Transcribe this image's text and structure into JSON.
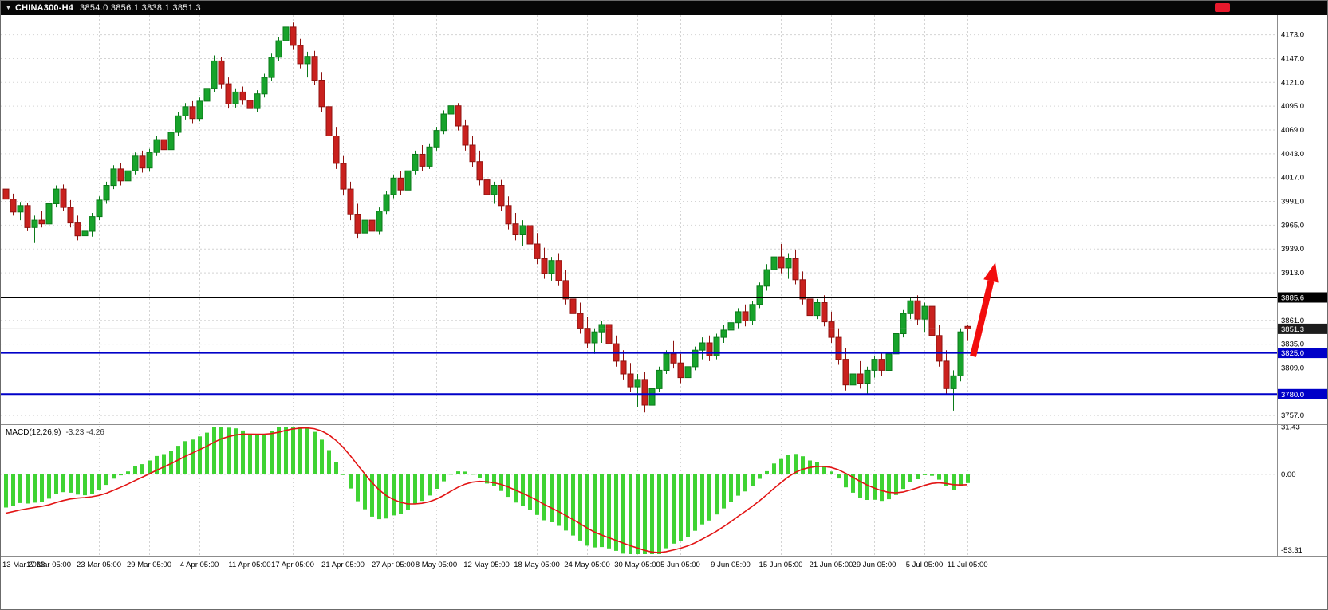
{
  "titlebar": {
    "dropdown_icon": "▼",
    "symbol_period": "CHINA300-H4",
    "ohlc": "3854.0 3856.1 3838.1 3851.3"
  },
  "chart_data": [
    {
      "type": "candlestick",
      "title": "CHINA300-H4",
      "price_axis": {
        "visible_min": 3748,
        "visible_max": 4194,
        "tick_values": [
          4173,
          4147,
          4121,
          4095,
          4069,
          4043,
          4017,
          3991,
          3965,
          3939,
          3913,
          3861,
          3835,
          3809,
          3757
        ],
        "tick_labels": [
          "4173.0",
          "4147.0",
          "4121.0",
          "4095.0",
          "4069.0",
          "4043.0",
          "4017.0",
          "3991.0",
          "3965.0",
          "3939.0",
          "3913.0",
          "3861.0",
          "3835.0",
          "3809.0",
          "3757.0"
        ]
      },
      "hlines": [
        {
          "value": 3885.6,
          "label": "3885.6",
          "line_color": "#000000",
          "label_bg": "#000000",
          "width": 2,
          "role": "resistance-line"
        },
        {
          "value": 3851.3,
          "label": "3851.3",
          "line_color": "#9a9a9a",
          "label_bg": "#1c1c1c",
          "width": 1,
          "role": "current-price"
        },
        {
          "value": 3825.0,
          "label": "3825.0",
          "line_color": "#0000c8",
          "label_bg": "#0000c8",
          "width": 2,
          "role": "support-line"
        },
        {
          "value": 3780.0,
          "label": "3780.0",
          "line_color": "#0000c8",
          "label_bg": "#0000c8",
          "width": 2,
          "role": "support-line"
        }
      ],
      "time_axis": [
        {
          "i": 0,
          "label": "13 Mar 2023"
        },
        {
          "i": 6,
          "label": "17 Mar 05:00"
        },
        {
          "i": 13,
          "label": "23 Mar 05:00"
        },
        {
          "i": 20,
          "label": "29 Mar 05:00"
        },
        {
          "i": 27,
          "label": "4 Apr 05:00"
        },
        {
          "i": 34,
          "label": "11 Apr 05:00"
        },
        {
          "i": 40,
          "label": "17 Apr 05:00"
        },
        {
          "i": 47,
          "label": "21 Apr 05:00"
        },
        {
          "i": 54,
          "label": "27 Apr 05:00"
        },
        {
          "i": 60,
          "label": "8 May 05:00"
        },
        {
          "i": 67,
          "label": "12 May 05:00"
        },
        {
          "i": 74,
          "label": "18 May 05:00"
        },
        {
          "i": 81,
          "label": "24 May 05:00"
        },
        {
          "i": 88,
          "label": "30 May 05:00"
        },
        {
          "i": 94,
          "label": "5 Jun 05:00"
        },
        {
          "i": 101,
          "label": "9 Jun 05:00"
        },
        {
          "i": 108,
          "label": "15 Jun 05:00"
        },
        {
          "i": 115,
          "label": "21 Jun 05:00"
        },
        {
          "i": 121,
          "label": "29 Jun 05:00"
        },
        {
          "i": 128,
          "label": "5 Jul 05:00"
        },
        {
          "i": 134,
          "label": "11 Jul 05:00"
        }
      ],
      "candles": [
        [
          4004,
          4008,
          3988,
          3993
        ],
        [
          3993,
          3999,
          3975,
          3979
        ],
        [
          3979,
          3990,
          3970,
          3986
        ],
        [
          3986,
          3989,
          3958,
          3962
        ],
        [
          3962,
          3975,
          3945,
          3970
        ],
        [
          3970,
          3980,
          3962,
          3966
        ],
        [
          3966,
          3992,
          3960,
          3988
        ],
        [
          3988,
          4008,
          3984,
          4004
        ],
        [
          4004,
          4009,
          3980,
          3984
        ],
        [
          3984,
          3992,
          3962,
          3967
        ],
        [
          3967,
          3975,
          3948,
          3953
        ],
        [
          3953,
          3962,
          3940,
          3958
        ],
        [
          3958,
          3978,
          3952,
          3974
        ],
        [
          3974,
          3996,
          3970,
          3992
        ],
        [
          3992,
          4012,
          3988,
          4008
        ],
        [
          4008,
          4030,
          4004,
          4026
        ],
        [
          4026,
          4032,
          4008,
          4013
        ],
        [
          4013,
          4028,
          4006,
          4024
        ],
        [
          4024,
          4044,
          4020,
          4040
        ],
        [
          4040,
          4046,
          4022,
          4027
        ],
        [
          4027,
          4048,
          4023,
          4044
        ],
        [
          4044,
          4062,
          4040,
          4058
        ],
        [
          4058,
          4064,
          4042,
          4047
        ],
        [
          4047,
          4070,
          4044,
          4066
        ],
        [
          4066,
          4088,
          4062,
          4084
        ],
        [
          4084,
          4098,
          4080,
          4094
        ],
        [
          4094,
          4100,
          4076,
          4081
        ],
        [
          4081,
          4104,
          4078,
          4100
        ],
        [
          4100,
          4118,
          4096,
          4114
        ],
        [
          4114,
          4150,
          4110,
          4144
        ],
        [
          4144,
          4148,
          4114,
          4119
        ],
        [
          4119,
          4126,
          4092,
          4097
        ],
        [
          4097,
          4114,
          4093,
          4110
        ],
        [
          4110,
          4116,
          4096,
          4101
        ],
        [
          4101,
          4110,
          4086,
          4092
        ],
        [
          4092,
          4112,
          4088,
          4108
        ],
        [
          4108,
          4130,
          4104,
          4126
        ],
        [
          4126,
          4152,
          4122,
          4148
        ],
        [
          4148,
          4170,
          4144,
          4166
        ],
        [
          4166,
          4188,
          4162,
          4181
        ],
        [
          4181,
          4186,
          4156,
          4161
        ],
        [
          4161,
          4168,
          4136,
          4141
        ],
        [
          4141,
          4154,
          4126,
          4149
        ],
        [
          4149,
          4155,
          4118,
          4123
        ],
        [
          4123,
          4132,
          4088,
          4094
        ],
        [
          4094,
          4102,
          4056,
          4062
        ],
        [
          4062,
          4072,
          4026,
          4032
        ],
        [
          4032,
          4040,
          3998,
          4004
        ],
        [
          4004,
          4012,
          3970,
          3976
        ],
        [
          3976,
          3988,
          3950,
          3956
        ],
        [
          3956,
          3974,
          3946,
          3970
        ],
        [
          3970,
          3980,
          3952,
          3958
        ],
        [
          3958,
          3984,
          3954,
          3980
        ],
        [
          3980,
          4002,
          3976,
          3998
        ],
        [
          3998,
          4020,
          3994,
          4016
        ],
        [
          4016,
          4024,
          3998,
          4003
        ],
        [
          4003,
          4028,
          4000,
          4024
        ],
        [
          4024,
          4046,
          4020,
          4042
        ],
        [
          4042,
          4052,
          4024,
          4029
        ],
        [
          4029,
          4054,
          4026,
          4050
        ],
        [
          4050,
          4072,
          4046,
          4068
        ],
        [
          4068,
          4090,
          4064,
          4086
        ],
        [
          4086,
          4100,
          4080,
          4095
        ],
        [
          4095,
          4098,
          4068,
          4073
        ],
        [
          4073,
          4080,
          4046,
          4052
        ],
        [
          4052,
          4062,
          4028,
          4034
        ],
        [
          4034,
          4046,
          4008,
          4014
        ],
        [
          4014,
          4026,
          3992,
          3998
        ],
        [
          3998,
          4012,
          3988,
          4008
        ],
        [
          4008,
          4014,
          3980,
          3986
        ],
        [
          3986,
          3996,
          3960,
          3966
        ],
        [
          3966,
          3978,
          3948,
          3954
        ],
        [
          3954,
          3970,
          3942,
          3964
        ],
        [
          3964,
          3972,
          3938,
          3944
        ],
        [
          3944,
          3956,
          3922,
          3928
        ],
        [
          3928,
          3940,
          3906,
          3912
        ],
        [
          3912,
          3930,
          3904,
          3926
        ],
        [
          3926,
          3934,
          3898,
          3904
        ],
        [
          3904,
          3916,
          3878,
          3884
        ],
        [
          3884,
          3896,
          3862,
          3868
        ],
        [
          3868,
          3880,
          3846,
          3852
        ],
        [
          3852,
          3864,
          3830,
          3836
        ],
        [
          3836,
          3852,
          3824,
          3848
        ],
        [
          3848,
          3860,
          3836,
          3856
        ],
        [
          3856,
          3862,
          3830,
          3835
        ],
        [
          3835,
          3844,
          3810,
          3816
        ],
        [
          3816,
          3828,
          3796,
          3802
        ],
        [
          3802,
          3814,
          3782,
          3788
        ],
        [
          3788,
          3802,
          3766,
          3796
        ],
        [
          3796,
          3804,
          3760,
          3768
        ],
        [
          3768,
          3790,
          3758,
          3786
        ],
        [
          3786,
          3810,
          3782,
          3806
        ],
        [
          3806,
          3828,
          3802,
          3824
        ],
        [
          3824,
          3838,
          3808,
          3814
        ],
        [
          3814,
          3824,
          3792,
          3798
        ],
        [
          3798,
          3814,
          3778,
          3810
        ],
        [
          3810,
          3832,
          3806,
          3828
        ],
        [
          3828,
          3842,
          3818,
          3836
        ],
        [
          3836,
          3844,
          3816,
          3822
        ],
        [
          3822,
          3846,
          3818,
          3842
        ],
        [
          3842,
          3856,
          3836,
          3850
        ],
        [
          3850,
          3862,
          3840,
          3858
        ],
        [
          3858,
          3874,
          3852,
          3870
        ],
        [
          3870,
          3878,
          3854,
          3860
        ],
        [
          3860,
          3882,
          3856,
          3878
        ],
        [
          3878,
          3902,
          3874,
          3898
        ],
        [
          3898,
          3922,
          3893,
          3916
        ],
        [
          3916,
          3936,
          3910,
          3930
        ],
        [
          3930,
          3944,
          3912,
          3918
        ],
        [
          3918,
          3934,
          3906,
          3928
        ],
        [
          3928,
          3938,
          3900,
          3905
        ],
        [
          3905,
          3914,
          3878,
          3884
        ],
        [
          3884,
          3894,
          3860,
          3866
        ],
        [
          3866,
          3884,
          3862,
          3880
        ],
        [
          3880,
          3888,
          3854,
          3859
        ],
        [
          3859,
          3870,
          3836,
          3842
        ],
        [
          3842,
          3852,
          3812,
          3818
        ],
        [
          3818,
          3830,
          3784,
          3790
        ],
        [
          3790,
          3808,
          3766,
          3802
        ],
        [
          3802,
          3816,
          3786,
          3792
        ],
        [
          3792,
          3810,
          3780,
          3806
        ],
        [
          3806,
          3822,
          3798,
          3818
        ],
        [
          3818,
          3826,
          3800,
          3806
        ],
        [
          3806,
          3828,
          3802,
          3824
        ],
        [
          3824,
          3850,
          3820,
          3846
        ],
        [
          3846,
          3872,
          3842,
          3868
        ],
        [
          3868,
          3886,
          3862,
          3882
        ],
        [
          3882,
          3888,
          3856,
          3862
        ],
        [
          3862,
          3880,
          3848,
          3876
        ],
        [
          3876,
          3884,
          3838,
          3844
        ],
        [
          3844,
          3856,
          3810,
          3816
        ],
        [
          3816,
          3828,
          3780,
          3786
        ],
        [
          3786,
          3806,
          3762,
          3800
        ],
        [
          3800,
          3852,
          3794,
          3848
        ],
        [
          3854.0,
          3856.1,
          3838.1,
          3851.3
        ]
      ],
      "arrow_annotation": {
        "tail": [
          1219,
          428
        ],
        "tip": [
          1247,
          310
        ],
        "color": "#f20d0d"
      }
    },
    {
      "type": "bar",
      "subtype": "macd-indicator",
      "label": "MACD(12,26,9)",
      "values_text": "-3.23 -4.26",
      "params": {
        "fast": 12,
        "slow": 26,
        "signal": 9
      },
      "axis_max": 31.43,
      "axis_min": -53.31,
      "axis_labels": [
        "31.43",
        "0.00",
        "-53.31"
      ],
      "hist_color": "#3fd333",
      "signal_color": "#e21414"
    }
  ],
  "colors": {
    "bull": "#17a32b",
    "bull_border": "#0b7a1a",
    "bear": "#c9211e",
    "bear_border": "#8f1310",
    "grid": "#d4d4d4",
    "axis_text": "#000000",
    "divider": "#8c8c8c",
    "titlebar_bg": "#060606",
    "red_badge": "#e8192c"
  }
}
